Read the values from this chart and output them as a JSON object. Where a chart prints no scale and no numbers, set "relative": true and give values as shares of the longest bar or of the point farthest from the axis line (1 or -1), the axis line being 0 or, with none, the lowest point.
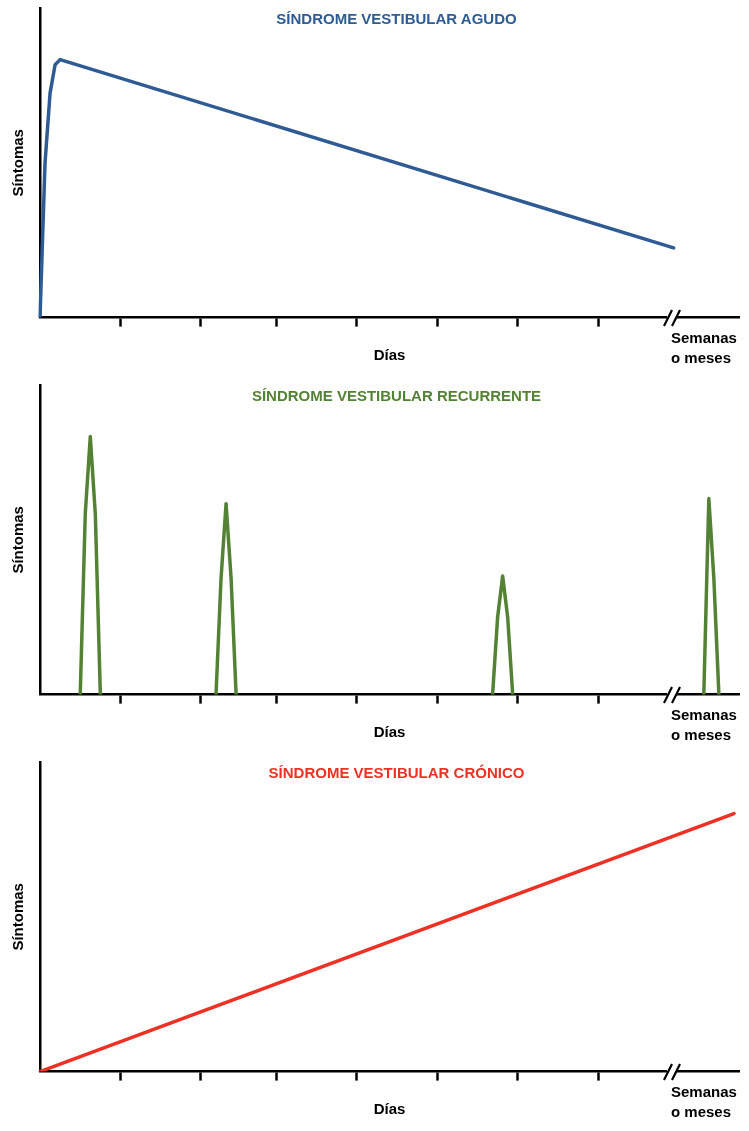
{
  "chart_data": [
    {
      "type": "line",
      "relative": true,
      "title": "SÍNDROME VESTIBULAR AGUDO",
      "xlabel": "Días",
      "ylabel": "Síntomas",
      "marker": "none",
      "annotations": [
        "Semanas o meses"
      ],
      "categories": [
        null,
        null,
        null,
        null,
        null,
        null,
        null,
        null,
        null,
        null,
        null,
        null,
        null,
        null,
        null,
        null,
        null,
        null,
        null,
        null,
        null,
        null,
        null,
        null,
        null,
        null,
        null,
        null,
        null,
        null,
        null,
        null,
        null,
        null,
        null,
        null,
        null,
        null,
        null,
        null,
        null,
        null,
        null,
        null,
        null,
        null,
        null,
        null,
        null,
        null,
        null,
        null,
        null,
        null,
        null,
        null,
        null,
        null,
        null,
        null,
        null,
        null,
        null,
        null,
        null,
        null,
        null,
        null,
        null,
        null,
        null,
        null,
        null,
        null,
        null,
        null,
        null,
        null,
        null,
        null,
        null,
        null,
        null,
        null,
        null,
        null,
        null,
        null,
        null,
        null,
        null,
        null,
        null,
        null,
        null,
        null,
        null,
        null,
        null,
        null,
        null,
        null,
        null,
        null,
        null,
        null,
        null,
        null,
        null,
        null,
        null,
        null,
        null,
        null,
        null,
        null,
        null,
        null,
        null,
        null,
        null,
        null,
        null,
        null,
        null,
        null,
        null,
        null,
        null,
        null,
        null,
        null,
        null,
        null,
        null,
        null,
        null,
        null,
        null,
        null
      ],
      "series": [
        {
          "color": "#2e5b94",
          "values": [
            0,
            0.6,
            0.87,
            0.98,
            1,
            null,
            null,
            null,
            null,
            null,
            null,
            null,
            null,
            null,
            null,
            null,
            null,
            null,
            null,
            null,
            null,
            null,
            null,
            null,
            null,
            null,
            null,
            null,
            null,
            null,
            null,
            null,
            null,
            null,
            null,
            null,
            null,
            null,
            null,
            null,
            null,
            null,
            null,
            null,
            null,
            null,
            null,
            null,
            null,
            null,
            null,
            null,
            null,
            null,
            null,
            null,
            null,
            null,
            null,
            null,
            null,
            null,
            null,
            null,
            null,
            null,
            null,
            null,
            null,
            null,
            null,
            null,
            null,
            null,
            null,
            null,
            null,
            null,
            null,
            null,
            null,
            null,
            null,
            null,
            null,
            null,
            null,
            null,
            null,
            null,
            null,
            null,
            null,
            null,
            null,
            null,
            null,
            null,
            null,
            null,
            null,
            null,
            null,
            null,
            null,
            null,
            null,
            null,
            null,
            null,
            null,
            null,
            null,
            null,
            null,
            null,
            null,
            null,
            null,
            null,
            null,
            null,
            null,
            null,
            null,
            null,
            0.27,
            null,
            null,
            null,
            null,
            null,
            null,
            null,
            null,
            null,
            null,
            null,
            null,
            null
          ]
        }
      ]
    },
    {
      "type": "line",
      "relative": true,
      "title": "SÍNDROME VESTIBULAR RECURRENTE",
      "xlabel": "Días",
      "ylabel": "Síntomas",
      "marker": "none",
      "annotations": [
        "Semanas o meses"
      ],
      "categories": [
        null,
        null,
        null,
        null,
        null,
        null,
        null,
        null,
        null,
        null,
        null,
        null,
        null,
        null,
        null,
        null,
        null,
        null,
        null,
        null,
        null,
        null,
        null,
        null,
        null,
        null,
        null,
        null,
        null,
        null,
        null,
        null,
        null,
        null,
        null,
        null,
        null,
        null,
        null,
        null,
        null,
        null,
        null,
        null,
        null,
        null,
        null,
        null,
        null,
        null,
        null,
        null,
        null,
        null,
        null,
        null,
        null,
        null,
        null,
        null,
        null,
        null,
        null,
        null,
        null,
        null,
        null,
        null,
        null,
        null,
        null,
        null,
        null,
        null,
        null,
        null,
        null,
        null,
        null,
        null,
        null,
        null,
        null,
        null,
        null,
        null,
        null,
        null,
        null,
        null,
        null,
        null,
        null,
        null,
        null,
        null,
        null,
        null,
        null,
        null,
        null,
        null,
        null,
        null,
        null,
        null,
        null,
        null,
        null,
        null,
        null,
        null,
        null,
        null,
        null,
        null,
        null,
        null,
        null,
        null,
        null,
        null,
        null,
        null,
        null,
        null,
        null,
        null,
        null,
        null,
        null,
        null,
        null,
        null,
        null,
        null,
        null,
        null,
        null,
        null
      ],
      "series": [
        {
          "color": "#548235",
          "values": [
            null,
            null,
            null,
            null,
            null,
            null,
            null,
            null,
            0,
            0.7,
            1,
            0.7,
            0,
            null,
            null,
            null,
            null,
            null,
            null,
            null,
            null,
            null,
            null,
            null,
            null,
            null,
            null,
            null,
            null,
            null,
            null,
            null,
            null,
            null,
            null,
            null,
            null,
            null,
            null,
            null,
            null,
            null,
            null,
            null,
            null,
            null,
            null,
            null,
            null,
            null,
            null,
            null,
            null,
            null,
            null,
            null,
            null,
            null,
            null,
            null,
            null,
            null,
            null,
            null,
            null,
            null,
            null,
            null,
            null,
            null,
            null,
            null,
            null,
            null,
            null,
            null,
            null,
            null,
            null,
            null,
            null,
            null,
            null,
            null,
            null,
            null,
            null,
            null,
            null,
            null,
            null,
            null,
            null,
            null,
            null,
            null,
            null,
            null,
            null,
            null,
            null,
            null,
            null,
            null,
            null,
            null,
            null,
            null,
            null,
            null,
            null,
            null,
            null,
            null,
            null,
            null,
            null,
            null,
            null,
            null,
            null,
            null,
            null,
            null,
            null,
            null,
            null,
            null,
            null,
            null,
            null,
            null,
            null,
            null,
            null,
            null,
            null,
            null,
            null,
            null
          ]
        },
        {
          "color": "#548235",
          "values": [
            null,
            null,
            null,
            null,
            null,
            null,
            null,
            null,
            null,
            null,
            null,
            null,
            null,
            null,
            null,
            null,
            null,
            null,
            null,
            null,
            null,
            null,
            null,
            null,
            null,
            null,
            null,
            null,
            null,
            null,
            null,
            null,
            null,
            null,
            null,
            0,
            0.45,
            0.74,
            0.45,
            0,
            null,
            null,
            null,
            null,
            null,
            null,
            null,
            null,
            null,
            null,
            null,
            null,
            null,
            null,
            null,
            null,
            null,
            null,
            null,
            null,
            null,
            null,
            null,
            null,
            null,
            null,
            null,
            null,
            null,
            null,
            null,
            null,
            null,
            null,
            null,
            null,
            null,
            null,
            null,
            null,
            null,
            null,
            null,
            null,
            null,
            null,
            null,
            null,
            null,
            null,
            null,
            null,
            null,
            null,
            null,
            null,
            null,
            null,
            null,
            null,
            null,
            null,
            null,
            null,
            null,
            null,
            null,
            null,
            null,
            null,
            null,
            null,
            null,
            null,
            null,
            null,
            null,
            null,
            null,
            null,
            null,
            null,
            null,
            null,
            null,
            null,
            null,
            null,
            null,
            null,
            null,
            null,
            null,
            null,
            null,
            null,
            null,
            null,
            null,
            null
          ]
        },
        {
          "color": "#548235",
          "values": [
            null,
            null,
            null,
            null,
            null,
            null,
            null,
            null,
            null,
            null,
            null,
            null,
            null,
            null,
            null,
            null,
            null,
            null,
            null,
            null,
            null,
            null,
            null,
            null,
            null,
            null,
            null,
            null,
            null,
            null,
            null,
            null,
            null,
            null,
            null,
            null,
            null,
            null,
            null,
            null,
            null,
            null,
            null,
            null,
            null,
            null,
            null,
            null,
            null,
            null,
            null,
            null,
            null,
            null,
            null,
            null,
            null,
            null,
            null,
            null,
            null,
            null,
            null,
            null,
            null,
            null,
            null,
            null,
            null,
            null,
            null,
            null,
            null,
            null,
            null,
            null,
            null,
            null,
            null,
            null,
            null,
            null,
            null,
            null,
            null,
            null,
            null,
            null,
            null,
            null,
            0,
            0.3,
            0.46,
            0.3,
            0,
            null,
            null,
            null,
            null,
            null,
            null,
            null,
            null,
            null,
            null,
            null,
            null,
            null,
            null,
            null,
            null,
            null,
            null,
            null,
            null,
            null,
            null,
            null,
            null,
            null,
            null,
            null,
            null,
            null,
            null,
            null,
            null,
            null,
            null,
            null,
            null,
            null,
            null,
            null,
            null,
            null,
            null,
            null,
            null,
            null
          ]
        },
        {
          "color": "#548235",
          "values": [
            null,
            null,
            null,
            null,
            null,
            null,
            null,
            null,
            null,
            null,
            null,
            null,
            null,
            null,
            null,
            null,
            null,
            null,
            null,
            null,
            null,
            null,
            null,
            null,
            null,
            null,
            null,
            null,
            null,
            null,
            null,
            null,
            null,
            null,
            null,
            null,
            null,
            null,
            null,
            null,
            null,
            null,
            null,
            null,
            null,
            null,
            null,
            null,
            null,
            null,
            null,
            null,
            null,
            null,
            null,
            null,
            null,
            null,
            null,
            null,
            null,
            null,
            null,
            null,
            null,
            null,
            null,
            null,
            null,
            null,
            null,
            null,
            null,
            null,
            null,
            null,
            null,
            null,
            null,
            null,
            null,
            null,
            null,
            null,
            null,
            null,
            null,
            null,
            null,
            null,
            null,
            null,
            null,
            null,
            null,
            null,
            null,
            null,
            null,
            null,
            null,
            null,
            null,
            null,
            null,
            null,
            null,
            null,
            null,
            null,
            null,
            null,
            null,
            null,
            null,
            null,
            null,
            null,
            null,
            null,
            null,
            null,
            null,
            null,
            null,
            null,
            null,
            null,
            null,
            null,
            null,
            null,
            0,
            0.76,
            0.45,
            0,
            null,
            null,
            null,
            null
          ]
        }
      ]
    },
    {
      "type": "line",
      "relative": true,
      "title": "SÍNDROME VESTIBULAR CRÓNICO",
      "xlabel": "Días",
      "ylabel": "Síntomas",
      "marker": "none",
      "annotations": [
        "Semanas o meses"
      ],
      "categories": [
        null,
        null,
        null,
        null,
        null,
        null,
        null,
        null,
        null,
        null,
        null,
        null,
        null,
        null,
        null,
        null,
        null,
        null,
        null,
        null,
        null,
        null,
        null,
        null,
        null,
        null,
        null,
        null,
        null,
        null,
        null,
        null,
        null,
        null,
        null,
        null,
        null,
        null,
        null,
        null,
        null,
        null,
        null,
        null,
        null,
        null,
        null,
        null,
        null,
        null,
        null,
        null,
        null,
        null,
        null,
        null,
        null,
        null,
        null,
        null,
        null,
        null,
        null,
        null,
        null,
        null,
        null,
        null,
        null,
        null,
        null,
        null,
        null,
        null,
        null,
        null,
        null,
        null,
        null,
        null,
        null,
        null,
        null,
        null,
        null,
        null,
        null,
        null,
        null,
        null,
        null,
        null,
        null,
        null,
        null,
        null,
        null,
        null,
        null,
        null,
        null,
        null,
        null,
        null,
        null,
        null,
        null,
        null,
        null,
        null,
        null,
        null,
        null,
        null,
        null,
        null,
        null,
        null,
        null,
        null,
        null,
        null,
        null,
        null,
        null,
        null,
        null,
        null,
        null,
        null,
        null,
        null,
        null,
        null,
        null,
        null,
        null,
        null,
        null,
        null
      ],
      "series": [
        {
          "color": "#ee3124",
          "values": [
            0,
            null,
            null,
            null,
            null,
            null,
            null,
            null,
            null,
            null,
            null,
            null,
            null,
            null,
            null,
            null,
            null,
            null,
            null,
            null,
            null,
            null,
            null,
            null,
            null,
            null,
            null,
            null,
            null,
            null,
            null,
            null,
            null,
            null,
            null,
            null,
            null,
            null,
            null,
            null,
            null,
            null,
            null,
            null,
            null,
            null,
            null,
            null,
            null,
            null,
            null,
            null,
            null,
            null,
            null,
            null,
            null,
            null,
            null,
            null,
            null,
            null,
            null,
            null,
            null,
            null,
            null,
            null,
            null,
            null,
            null,
            null,
            null,
            null,
            null,
            null,
            null,
            null,
            null,
            null,
            null,
            null,
            null,
            null,
            null,
            null,
            null,
            null,
            null,
            null,
            null,
            null,
            null,
            null,
            null,
            null,
            null,
            null,
            null,
            null,
            null,
            null,
            null,
            null,
            null,
            null,
            null,
            null,
            null,
            null,
            null,
            null,
            null,
            null,
            null,
            null,
            null,
            null,
            null,
            null,
            null,
            null,
            null,
            null,
            null,
            null,
            null,
            null,
            null,
            null,
            null,
            null,
            null,
            null,
            null,
            null,
            null,
            null,
            1,
            null
          ]
        }
      ]
    }
  ]
}
